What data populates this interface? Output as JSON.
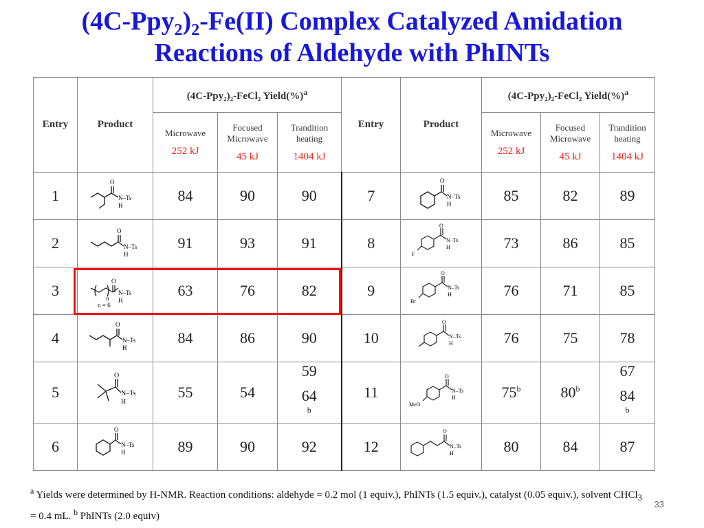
{
  "title": {
    "line1_prefix": "(4C-Ppy",
    "line1_sub1": "2",
    "line1_mid": ")",
    "line1_sub2": "2",
    "line1_suffix": "-Fe(II) Complex Catalyzed Amidation",
    "line2": "Reactions of Aldehyde with PhINTs"
  },
  "header": {
    "entry": "Entry",
    "product": "Product",
    "yield_group": "(4C-Ppy₂)₂-FeCl₂ Yield(%)",
    "yield_sup": "a",
    "microwave": "Microwave",
    "focused_1": "Focused",
    "focused_2": "Microwave",
    "trad_1": "Trandition",
    "trad_2": "heating",
    "energy_mw": "252 kJ",
    "energy_fmw": "45 kJ",
    "energy_trad": "1404 kJ"
  },
  "rows_left": [
    {
      "entry": "1",
      "mw": "84",
      "fmw": "90",
      "trad": "90"
    },
    {
      "entry": "2",
      "mw": "91",
      "fmw": "93",
      "trad": "91"
    },
    {
      "entry": "3",
      "mw": "63",
      "fmw": "76",
      "trad": "82"
    },
    {
      "entry": "4",
      "mw": "84",
      "fmw": "86",
      "trad": "90"
    },
    {
      "entry": "5",
      "mw": "55",
      "fmw": "54",
      "trad": "59",
      "trad2": "64",
      "trad2_sup": "b"
    },
    {
      "entry": "6",
      "mw": "89",
      "fmw": "90",
      "trad": "92"
    }
  ],
  "rows_right": [
    {
      "entry": "7",
      "mw": "85",
      "fmw": "82",
      "trad": "89"
    },
    {
      "entry": "8",
      "mw": "73",
      "fmw": "86",
      "trad": "85"
    },
    {
      "entry": "9",
      "mw": "76",
      "fmw": "71",
      "trad": "85"
    },
    {
      "entry": "10",
      "mw": "76",
      "fmw": "75",
      "trad": "78"
    },
    {
      "entry": "11",
      "mw": "75",
      "mw_sup": "b",
      "fmw": "80",
      "fmw_sup": "b",
      "trad": "67",
      "trad2": "84",
      "trad2_sup": "b"
    },
    {
      "entry": "12",
      "mw": "80",
      "fmw": "84",
      "trad": "87"
    }
  ],
  "mol_labels": {
    "nts": "N–Ts",
    "h": "H",
    "o": "O",
    "f": "F",
    "br": "Br",
    "meo": "MeO",
    "n": "n",
    "n6": "n = 6"
  },
  "footnote": {
    "sup_a": "a",
    "text1": " Yields were determined by H-NMR. Reaction conditions: aldehyde = 0.2 mol (1 equiv.), PhINTs (1.5 equiv.), catalyst (0.05 equiv.), solvent CHCl",
    "sub3": "3",
    "text2": " = 0.4 mL. ",
    "sup_b": "b",
    "text3": " PhINTs (2.0 equiv)"
  },
  "page_number": "33",
  "colors": {
    "title": "#1818d8",
    "energy": "#e8231d",
    "highlight": "#e11111"
  }
}
